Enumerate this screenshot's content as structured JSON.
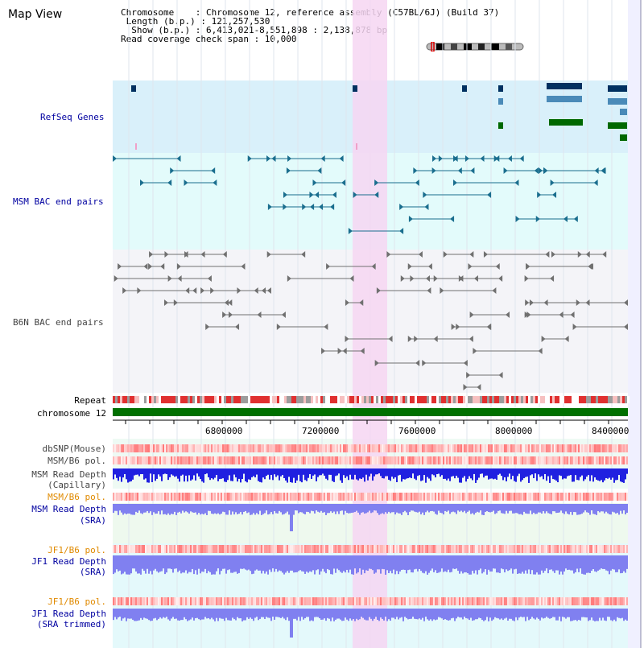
{
  "header": {
    "title": "Map View",
    "chromosome_line": "Chromosome    : Chromosome 12, reference assembly (C57BL/6J) (Build 37)",
    "length_line": " Length (b.p.) : 121,257,530",
    "show_line": "  Show (b.p.) : 6,413,021-8,551,898 : 2,138,878 bp",
    "coverage_line": "Read coverage check span : 10,000"
  },
  "tracks": {
    "refseq": "RefSeq Genes",
    "msm_bac": "MSM BAC end pairs",
    "b6n_bac": "B6N BAC end pairs",
    "repeat": "Repeat",
    "chromosome": "chromosome 12",
    "dbsnp": "dbSNP(Mouse)",
    "msm_b6_pol": "MSM/B6 pol.",
    "msm_depth_cap_1": "MSM Read Depth",
    "msm_depth_cap_2": "(Capillary)",
    "msm_b6_pol2": "MSM/B6 pol.",
    "msm_depth_sra_1": "MSM Read Depth",
    "msm_depth_sra_2": "(SRA)",
    "jf1_pol": "JF1/B6 pol.",
    "jf1_depth_1": "JF1 Read Depth",
    "jf1_depth_2": "(SRA)",
    "jf1_pol2": "JF1/B6 pol.",
    "jf1_trim_1": "JF1 Read Depth",
    "jf1_trim_2": "(SRA trimmed)"
  },
  "axis": {
    "ticks": [
      "6800000",
      "7200000",
      "7600000",
      "8000000",
      "8400000"
    ]
  },
  "colors": {
    "highlight": "#f6d6f2",
    "refseq_bg": "#d9f0fa",
    "msm_bg": "#e3fbfb",
    "b6n_bg": "#f4f4f8",
    "chromosome": "#007000",
    "depth_blue": "#2020e0",
    "depth_violet": "#8080f0"
  }
}
